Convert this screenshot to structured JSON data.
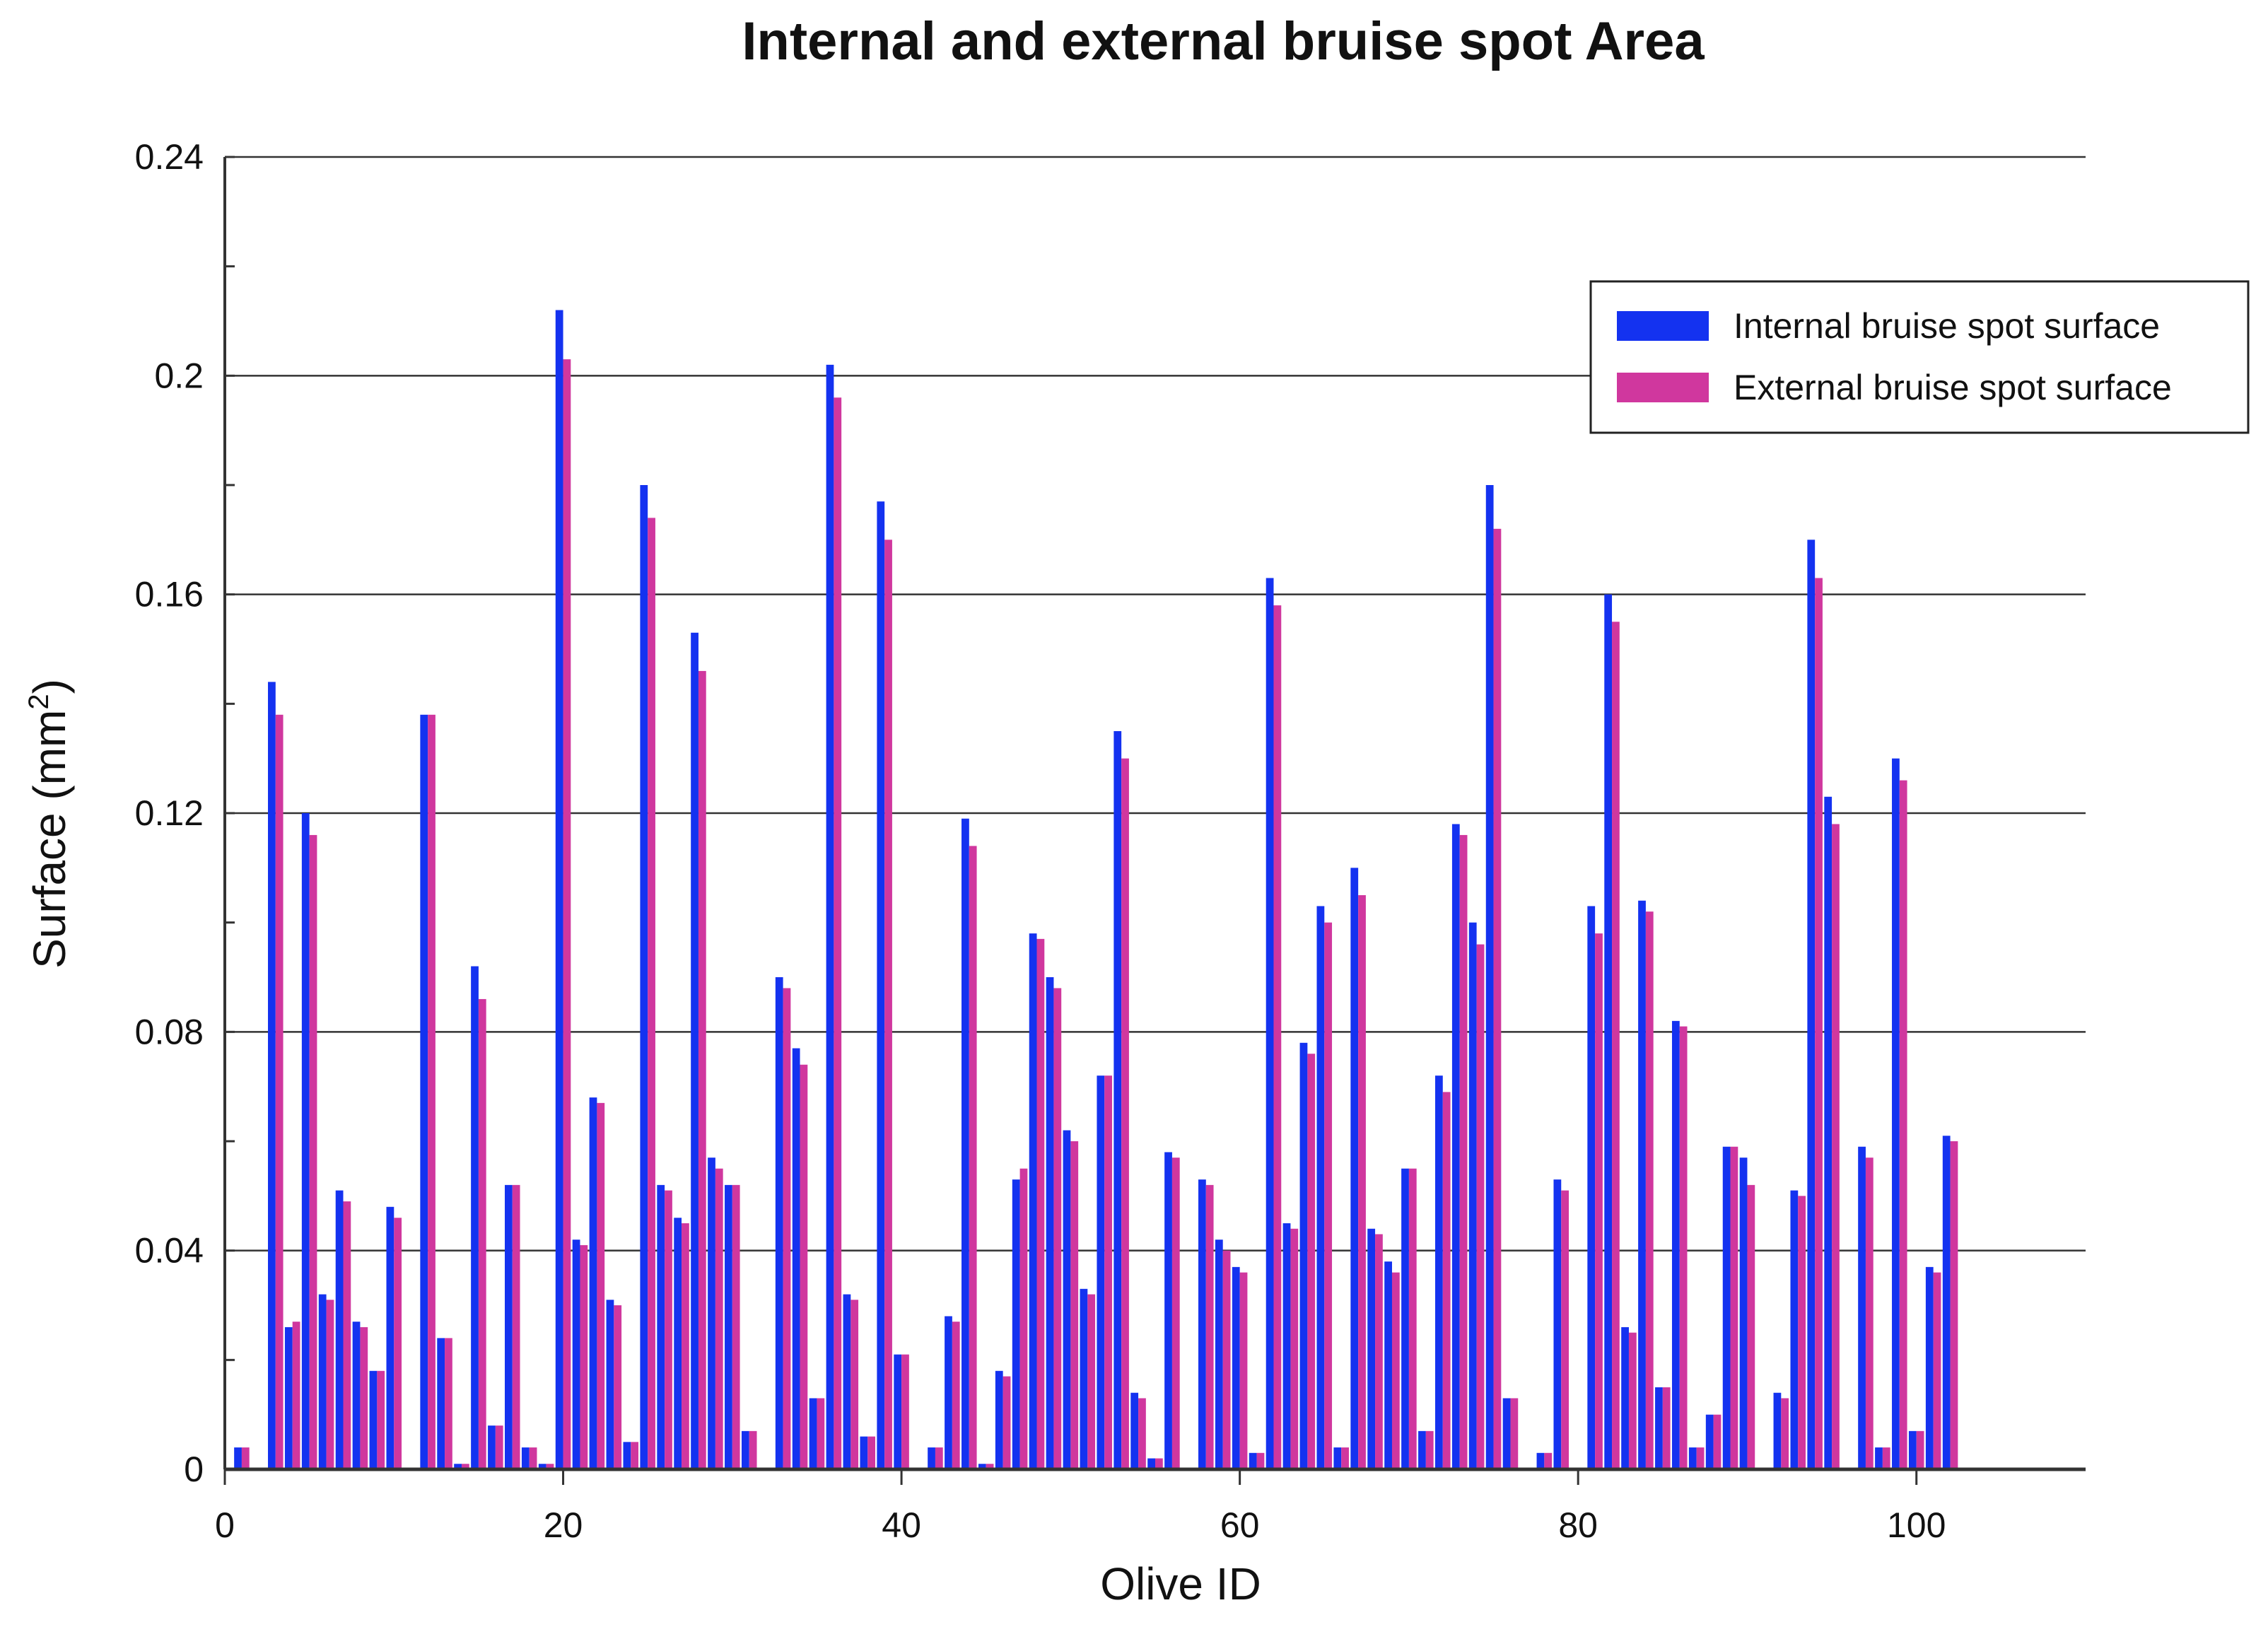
{
  "chart_data": {
    "type": "bar",
    "title": "Internal and external bruise spot Area",
    "xlabel": "Olive ID",
    "ylabel": "Surface (mm²)",
    "xlim": [
      0,
      110
    ],
    "ylim": [
      0,
      0.24
    ],
    "x_ticks": [
      0,
      20,
      40,
      60,
      80,
      100
    ],
    "x_tick_labels": [
      "0",
      "20",
      "40",
      "60",
      "80",
      "100"
    ],
    "y_ticks": [
      0,
      0.04,
      0.08,
      0.12,
      0.16,
      0.2,
      0.24
    ],
    "y_tick_labels": [
      "0",
      "0.04",
      "0.08",
      "0.12",
      "0.16",
      "0.2",
      "0.24"
    ],
    "grid": true,
    "legend_position": "top-right",
    "x": [
      1,
      2,
      3,
      4,
      5,
      6,
      7,
      8,
      9,
      10,
      11,
      12,
      13,
      14,
      15,
      16,
      17,
      18,
      19,
      20,
      21,
      22,
      23,
      24,
      25,
      26,
      27,
      28,
      29,
      30,
      31,
      32,
      33,
      34,
      35,
      36,
      37,
      38,
      39,
      40,
      41,
      42,
      43,
      44,
      45,
      46,
      47,
      48,
      49,
      50,
      51,
      52,
      53,
      54,
      55,
      56,
      57,
      58,
      59,
      60,
      61,
      62,
      63,
      64,
      65,
      66,
      67,
      68,
      69,
      70,
      71,
      72,
      73,
      74,
      75,
      76,
      77,
      78,
      79,
      80,
      81,
      82,
      83,
      84,
      85,
      86,
      87,
      88,
      89,
      90,
      91,
      92,
      93,
      94,
      95,
      96,
      97,
      98,
      99,
      100,
      101,
      102
    ],
    "series": [
      {
        "name": "Internal bruise spot surface",
        "color": "#1432f0",
        "values": [
          0.004,
          0,
          0.144,
          0.026,
          0.12,
          0.032,
          0.051,
          0.027,
          0.018,
          0.048,
          0,
          0.138,
          0.024,
          0.001,
          0.092,
          0.008,
          0.052,
          0.004,
          0.001,
          0.212,
          0.042,
          0.068,
          0.031,
          0.005,
          0.18,
          0.052,
          0.046,
          0.153,
          0.057,
          0.052,
          0.007,
          0,
          0.09,
          0.077,
          0.013,
          0.202,
          0.032,
          0.006,
          0.177,
          0.021,
          0,
          0.004,
          0.028,
          0.119,
          0.001,
          0.018,
          0.053,
          0.098,
          0.09,
          0.062,
          0.033,
          0.072,
          0.135,
          0.014,
          0.002,
          0.058,
          0,
          0.053,
          0.042,
          0.037,
          0.003,
          0.163,
          0.045,
          0.078,
          0.103,
          0.004,
          0.11,
          0.044,
          0.038,
          0.055,
          0.007,
          0.072,
          0.118,
          0.1,
          0.18,
          0.013,
          0,
          0.003,
          0.053,
          0,
          0.103,
          0.16,
          0.026,
          0.104,
          0.015,
          0.082,
          0.004,
          0.01,
          0.059,
          0.057,
          0,
          0.014,
          0.051,
          0.17,
          0.123,
          0,
          0.059,
          0.004,
          0.13,
          0.007,
          0.037,
          0.061
        ]
      },
      {
        "name": "External bruise spot surface",
        "color": "#d0379e",
        "values": [
          0.004,
          0,
          0.138,
          0.027,
          0.116,
          0.031,
          0.049,
          0.026,
          0.018,
          0.046,
          0,
          0.138,
          0.024,
          0.001,
          0.086,
          0.008,
          0.052,
          0.004,
          0.001,
          0.203,
          0.041,
          0.067,
          0.03,
          0.005,
          0.174,
          0.051,
          0.045,
          0.146,
          0.055,
          0.052,
          0.007,
          0,
          0.088,
          0.074,
          0.013,
          0.196,
          0.031,
          0.006,
          0.17,
          0.021,
          0,
          0.004,
          0.027,
          0.114,
          0.001,
          0.017,
          0.055,
          0.097,
          0.088,
          0.06,
          0.032,
          0.072,
          0.13,
          0.013,
          0.002,
          0.057,
          0,
          0.052,
          0.04,
          0.036,
          0.003,
          0.158,
          0.044,
          0.076,
          0.1,
          0.004,
          0.105,
          0.043,
          0.036,
          0.055,
          0.007,
          0.069,
          0.116,
          0.096,
          0.172,
          0.013,
          0,
          0.003,
          0.051,
          0,
          0.098,
          0.155,
          0.025,
          0.102,
          0.015,
          0.081,
          0.004,
          0.01,
          0.059,
          0.052,
          0,
          0.013,
          0.05,
          0.163,
          0.118,
          0,
          0.057,
          0.004,
          0.126,
          0.007,
          0.036,
          0.06
        ]
      }
    ]
  }
}
